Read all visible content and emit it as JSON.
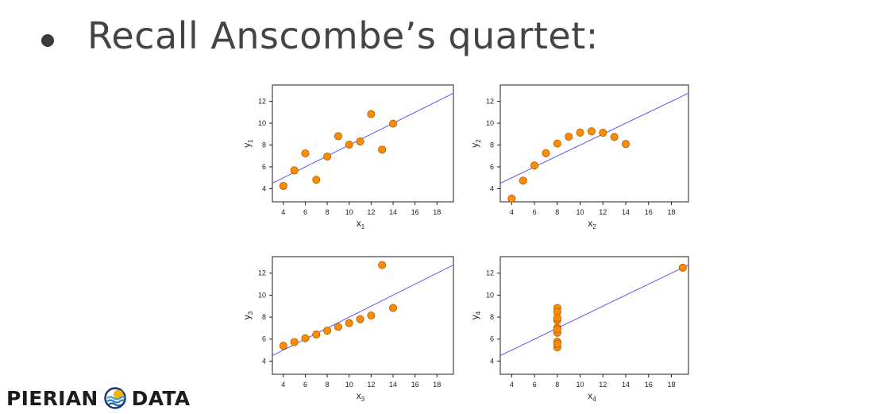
{
  "slide": {
    "bullet_text": "Recall Anscombe’s quartet:"
  },
  "logo": {
    "word_left": "PIERIAN",
    "word_right": "DATA",
    "icon": "pierian-data-logo-icon"
  },
  "colors": {
    "point_fill": "#ff8c00",
    "point_stroke": "#b05a00",
    "regression_line": "#4444ff",
    "text": "#444444"
  },
  "chart_data": [
    {
      "type": "scatter",
      "xlabel": "x",
      "xlabel_sub": "1",
      "ylabel": "y",
      "ylabel_sub": "1",
      "xlim": [
        3,
        19.5
      ],
      "ylim": [
        2.8,
        13.5
      ],
      "xticks": [
        4,
        6,
        8,
        10,
        12,
        14,
        16,
        18
      ],
      "yticks": [
        4,
        6,
        8,
        10,
        12
      ],
      "regression": {
        "intercept": 3,
        "slope": 0.5
      },
      "points": [
        [
          10,
          8.04
        ],
        [
          8,
          6.95
        ],
        [
          13,
          7.58
        ],
        [
          9,
          8.81
        ],
        [
          11,
          8.33
        ],
        [
          14,
          9.96
        ],
        [
          6,
          7.24
        ],
        [
          4,
          4.26
        ],
        [
          12,
          10.84
        ],
        [
          7,
          4.82
        ],
        [
          5,
          5.68
        ]
      ]
    },
    {
      "type": "scatter",
      "xlabel": "x",
      "xlabel_sub": "2",
      "ylabel": "y",
      "ylabel_sub": "2",
      "xlim": [
        3,
        19.5
      ],
      "ylim": [
        2.8,
        13.5
      ],
      "xticks": [
        4,
        6,
        8,
        10,
        12,
        14,
        16,
        18
      ],
      "yticks": [
        4,
        6,
        8,
        10,
        12
      ],
      "regression": {
        "intercept": 3,
        "slope": 0.5
      },
      "points": [
        [
          10,
          9.14
        ],
        [
          8,
          8.14
        ],
        [
          13,
          8.74
        ],
        [
          9,
          8.77
        ],
        [
          11,
          9.26
        ],
        [
          14,
          8.1
        ],
        [
          6,
          6.13
        ],
        [
          4,
          3.1
        ],
        [
          12,
          9.13
        ],
        [
          7,
          7.26
        ],
        [
          5,
          4.74
        ]
      ]
    },
    {
      "type": "scatter",
      "xlabel": "x",
      "xlabel_sub": "3",
      "ylabel": "y",
      "ylabel_sub": "3",
      "xlim": [
        3,
        19.5
      ],
      "ylim": [
        2.8,
        13.5
      ],
      "xticks": [
        4,
        6,
        8,
        10,
        12,
        14,
        16,
        18
      ],
      "yticks": [
        4,
        6,
        8,
        10,
        12
      ],
      "regression": {
        "intercept": 3,
        "slope": 0.5
      },
      "points": [
        [
          10,
          7.46
        ],
        [
          8,
          6.77
        ],
        [
          13,
          12.74
        ],
        [
          9,
          7.11
        ],
        [
          11,
          7.81
        ],
        [
          14,
          8.84
        ],
        [
          6,
          6.08
        ],
        [
          4,
          5.39
        ],
        [
          12,
          8.15
        ],
        [
          7,
          6.42
        ],
        [
          5,
          5.73
        ]
      ]
    },
    {
      "type": "scatter",
      "xlabel": "x",
      "xlabel_sub": "4",
      "ylabel": "y",
      "ylabel_sub": "4",
      "xlim": [
        3,
        19.5
      ],
      "ylim": [
        2.8,
        13.5
      ],
      "xticks": [
        4,
        6,
        8,
        10,
        12,
        14,
        16,
        18
      ],
      "yticks": [
        4,
        6,
        8,
        10,
        12
      ],
      "regression": {
        "intercept": 3,
        "slope": 0.5
      },
      "points": [
        [
          8,
          6.58
        ],
        [
          8,
          5.76
        ],
        [
          8,
          7.71
        ],
        [
          8,
          8.84
        ],
        [
          8,
          8.47
        ],
        [
          8,
          7.04
        ],
        [
          8,
          5.25
        ],
        [
          19,
          12.5
        ],
        [
          8,
          5.56
        ],
        [
          8,
          7.91
        ],
        [
          8,
          6.89
        ]
      ]
    }
  ]
}
